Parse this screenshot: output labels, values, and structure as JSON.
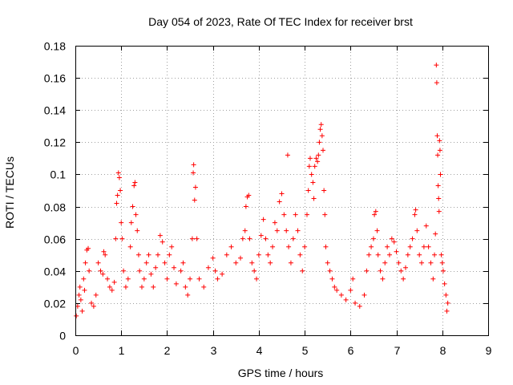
{
  "chart_data": {
    "type": "scatter",
    "title": "Day 054 of 2023, Rate Of TEC Index for receiver brst",
    "xlabel": "GPS time / hours",
    "ylabel": "ROTI / TECUs",
    "xlim": [
      0,
      9
    ],
    "ylim": [
      0,
      0.18
    ],
    "xticks": [
      "0",
      "1",
      "2",
      "3",
      "4",
      "5",
      "6",
      "7",
      "8",
      "9"
    ],
    "yticks": [
      "0",
      "0.02",
      "0.04",
      "0.06",
      "0.08",
      "0.1",
      "0.12",
      "0.14",
      "0.16",
      "0.18"
    ],
    "grid": true,
    "marker": "+",
    "color": "#ff0000",
    "series": [
      {
        "name": "ROTI",
        "points": [
          [
            0.02,
            0.012
          ],
          [
            0.05,
            0.018
          ],
          [
            0.08,
            0.025
          ],
          [
            0.1,
            0.03
          ],
          [
            0.12,
            0.022
          ],
          [
            0.15,
            0.015
          ],
          [
            0.18,
            0.035
          ],
          [
            0.2,
            0.028
          ],
          [
            0.22,
            0.045
          ],
          [
            0.25,
            0.053
          ],
          [
            0.28,
            0.054
          ],
          [
            0.3,
            0.04
          ],
          [
            0.35,
            0.02
          ],
          [
            0.4,
            0.018
          ],
          [
            0.45,
            0.025
          ],
          [
            0.5,
            0.045
          ],
          [
            0.55,
            0.04
          ],
          [
            0.6,
            0.038
          ],
          [
            0.62,
            0.052
          ],
          [
            0.65,
            0.05
          ],
          [
            0.7,
            0.035
          ],
          [
            0.75,
            0.03
          ],
          [
            0.8,
            0.028
          ],
          [
            0.85,
            0.033
          ],
          [
            0.88,
            0.06
          ],
          [
            0.9,
            0.082
          ],
          [
            0.92,
            0.087
          ],
          [
            0.94,
            0.101
          ],
          [
            0.96,
            0.098
          ],
          [
            0.98,
            0.09
          ],
          [
            1.0,
            0.07
          ],
          [
            1.02,
            0.06
          ],
          [
            1.05,
            0.04
          ],
          [
            1.1,
            0.03
          ],
          [
            1.15,
            0.035
          ],
          [
            1.2,
            0.055
          ],
          [
            1.22,
            0.07
          ],
          [
            1.25,
            0.08
          ],
          [
            1.28,
            0.093
          ],
          [
            1.3,
            0.095
          ],
          [
            1.32,
            0.075
          ],
          [
            1.35,
            0.065
          ],
          [
            1.38,
            0.05
          ],
          [
            1.4,
            0.04
          ],
          [
            1.45,
            0.03
          ],
          [
            1.5,
            0.035
          ],
          [
            1.55,
            0.045
          ],
          [
            1.6,
            0.05
          ],
          [
            1.65,
            0.038
          ],
          [
            1.7,
            0.03
          ],
          [
            1.75,
            0.042
          ],
          [
            1.8,
            0.05
          ],
          [
            1.85,
            0.062
          ],
          [
            1.9,
            0.058
          ],
          [
            1.95,
            0.045
          ],
          [
            2.0,
            0.035
          ],
          [
            2.05,
            0.05
          ],
          [
            2.1,
            0.055
          ],
          [
            2.15,
            0.042
          ],
          [
            2.2,
            0.032
          ],
          [
            2.3,
            0.04
          ],
          [
            2.35,
            0.045
          ],
          [
            2.4,
            0.03
          ],
          [
            2.45,
            0.025
          ],
          [
            2.5,
            0.035
          ],
          [
            2.55,
            0.06
          ],
          [
            2.57,
            0.101
          ],
          [
            2.58,
            0.106
          ],
          [
            2.6,
            0.084
          ],
          [
            2.62,
            0.092
          ],
          [
            2.65,
            0.06
          ],
          [
            2.7,
            0.035
          ],
          [
            2.8,
            0.03
          ],
          [
            2.9,
            0.042
          ],
          [
            3.0,
            0.048
          ],
          [
            3.05,
            0.04
          ],
          [
            3.1,
            0.035
          ],
          [
            3.2,
            0.038
          ],
          [
            3.3,
            0.05
          ],
          [
            3.4,
            0.055
          ],
          [
            3.5,
            0.045
          ],
          [
            3.6,
            0.048
          ],
          [
            3.65,
            0.06
          ],
          [
            3.7,
            0.065
          ],
          [
            3.72,
            0.08
          ],
          [
            3.75,
            0.086
          ],
          [
            3.78,
            0.087
          ],
          [
            3.8,
            0.06
          ],
          [
            3.85,
            0.045
          ],
          [
            3.9,
            0.04
          ],
          [
            3.95,
            0.035
          ],
          [
            4.0,
            0.05
          ],
          [
            4.05,
            0.062
          ],
          [
            4.1,
            0.072
          ],
          [
            4.15,
            0.06
          ],
          [
            4.2,
            0.05
          ],
          [
            4.25,
            0.045
          ],
          [
            4.3,
            0.055
          ],
          [
            4.35,
            0.07
          ],
          [
            4.4,
            0.065
          ],
          [
            4.45,
            0.083
          ],
          [
            4.5,
            0.088
          ],
          [
            4.55,
            0.075
          ],
          [
            4.6,
            0.065
          ],
          [
            4.63,
            0.112
          ],
          [
            4.65,
            0.055
          ],
          [
            4.7,
            0.045
          ],
          [
            4.75,
            0.06
          ],
          [
            4.8,
            0.075
          ],
          [
            4.85,
            0.065
          ],
          [
            4.9,
            0.05
          ],
          [
            4.95,
            0.04
          ],
          [
            5.0,
            0.055
          ],
          [
            5.05,
            0.075
          ],
          [
            5.08,
            0.09
          ],
          [
            5.1,
            0.105
          ],
          [
            5.12,
            0.11
          ],
          [
            5.15,
            0.1
          ],
          [
            5.18,
            0.095
          ],
          [
            5.2,
            0.085
          ],
          [
            5.22,
            0.105
          ],
          [
            5.25,
            0.11
          ],
          [
            5.28,
            0.108
          ],
          [
            5.3,
            0.112
          ],
          [
            5.32,
            0.12
          ],
          [
            5.34,
            0.128
          ],
          [
            5.36,
            0.131
          ],
          [
            5.38,
            0.124
          ],
          [
            5.4,
            0.115
          ],
          [
            5.42,
            0.09
          ],
          [
            5.44,
            0.075
          ],
          [
            5.46,
            0.055
          ],
          [
            5.5,
            0.045
          ],
          [
            5.55,
            0.04
          ],
          [
            5.6,
            0.035
          ],
          [
            5.65,
            0.03
          ],
          [
            5.7,
            0.028
          ],
          [
            5.8,
            0.025
          ],
          [
            5.9,
            0.022
          ],
          [
            6.0,
            0.028
          ],
          [
            6.05,
            0.035
          ],
          [
            6.1,
            0.02
          ],
          [
            6.2,
            0.018
          ],
          [
            6.3,
            0.025
          ],
          [
            6.35,
            0.04
          ],
          [
            6.4,
            0.05
          ],
          [
            6.45,
            0.055
          ],
          [
            6.5,
            0.06
          ],
          [
            6.52,
            0.075
          ],
          [
            6.55,
            0.077
          ],
          [
            6.58,
            0.065
          ],
          [
            6.6,
            0.05
          ],
          [
            6.65,
            0.04
          ],
          [
            6.7,
            0.035
          ],
          [
            6.75,
            0.045
          ],
          [
            6.8,
            0.055
          ],
          [
            6.85,
            0.05
          ],
          [
            6.9,
            0.06
          ],
          [
            6.95,
            0.058
          ],
          [
            7.0,
            0.052
          ],
          [
            7.05,
            0.045
          ],
          [
            7.1,
            0.04
          ],
          [
            7.15,
            0.035
          ],
          [
            7.2,
            0.042
          ],
          [
            7.25,
            0.05
          ],
          [
            7.3,
            0.055
          ],
          [
            7.35,
            0.06
          ],
          [
            7.4,
            0.075
          ],
          [
            7.42,
            0.078
          ],
          [
            7.45,
            0.065
          ],
          [
            7.5,
            0.05
          ],
          [
            7.55,
            0.045
          ],
          [
            7.6,
            0.055
          ],
          [
            7.65,
            0.068
          ],
          [
            7.7,
            0.055
          ],
          [
            7.75,
            0.045
          ],
          [
            7.8,
            0.035
          ],
          [
            7.83,
            0.05
          ],
          [
            7.85,
            0.063
          ],
          [
            7.87,
            0.168
          ],
          [
            7.88,
            0.157
          ],
          [
            7.89,
            0.124
          ],
          [
            7.9,
            0.112
          ],
          [
            7.91,
            0.093
          ],
          [
            7.92,
            0.085
          ],
          [
            7.93,
            0.077
          ],
          [
            7.94,
            0.121
          ],
          [
            7.95,
            0.115
          ],
          [
            7.96,
            0.1
          ],
          [
            7.98,
            0.05
          ],
          [
            8.0,
            0.045
          ],
          [
            8.02,
            0.04
          ],
          [
            8.05,
            0.032
          ],
          [
            8.08,
            0.025
          ],
          [
            8.1,
            0.015
          ],
          [
            8.12,
            0.02
          ]
        ]
      }
    ]
  }
}
